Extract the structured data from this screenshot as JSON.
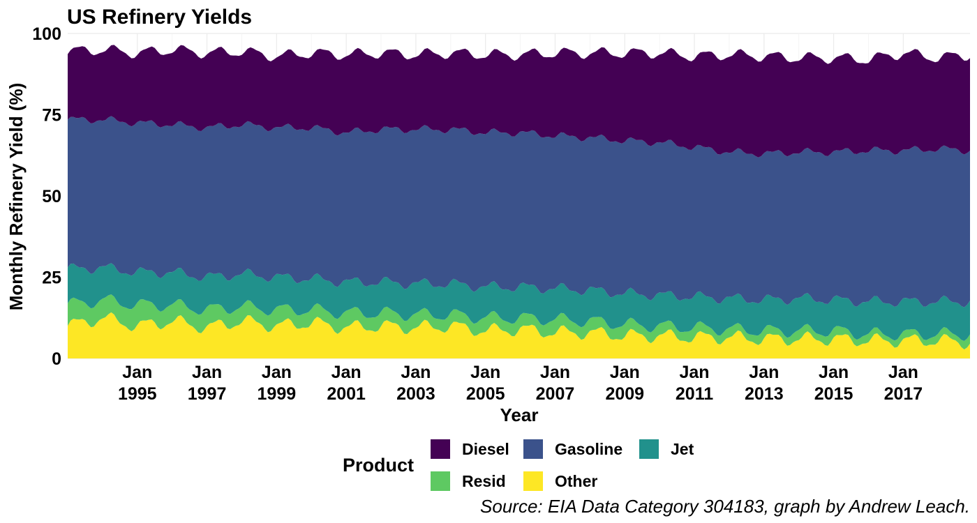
{
  "chart_data": {
    "type": "area",
    "stacked": true,
    "title": "US Refinery Yields",
    "xlabel": "Year",
    "ylabel": "Monthly Refinery Yield (%)",
    "caption": "Source: EIA Data Category 304183, graph by Andrew Leach.",
    "ylim": [
      0,
      100
    ],
    "yticks": [
      0,
      25,
      50,
      75,
      100
    ],
    "xlim": [
      "1993-01",
      "2018-12"
    ],
    "xticks": [
      {
        "date": "1995-01",
        "line1": "Jan",
        "line2": "1995"
      },
      {
        "date": "1997-01",
        "line1": "Jan",
        "line2": "1997"
      },
      {
        "date": "1999-01",
        "line1": "Jan",
        "line2": "1999"
      },
      {
        "date": "2001-01",
        "line1": "Jan",
        "line2": "2001"
      },
      {
        "date": "2003-01",
        "line1": "Jan",
        "line2": "2003"
      },
      {
        "date": "2005-01",
        "line1": "Jan",
        "line2": "2005"
      },
      {
        "date": "2007-01",
        "line1": "Jan",
        "line2": "2007"
      },
      {
        "date": "2009-01",
        "line1": "Jan",
        "line2": "2009"
      },
      {
        "date": "2011-01",
        "line1": "Jan",
        "line2": "2011"
      },
      {
        "date": "2013-01",
        "line1": "Jan",
        "line2": "2013"
      },
      {
        "date": "2015-01",
        "line1": "Jan",
        "line2": "2015"
      },
      {
        "date": "2017-01",
        "line1": "Jan",
        "line2": "2017"
      }
    ],
    "grid": true,
    "legend": {
      "title": "Product",
      "position": "bottom",
      "rows": [
        [
          "Diesel",
          "Gasoline",
          "Jet"
        ],
        [
          "Resid",
          "Other"
        ]
      ]
    },
    "x": [
      "1993-01",
      "1994-01",
      "1995-01",
      "1996-01",
      "1997-01",
      "1998-01",
      "1999-01",
      "2000-01",
      "2001-01",
      "2002-01",
      "2003-01",
      "2004-01",
      "2005-01",
      "2006-01",
      "2007-01",
      "2008-01",
      "2009-01",
      "2010-01",
      "2011-01",
      "2012-01",
      "2013-01",
      "2014-01",
      "2015-01",
      "2016-01",
      "2017-01",
      "2018-01",
      "2018-12"
    ],
    "series": [
      {
        "name": "Other",
        "color": "#FDE725",
        "values": [
          10,
          12.5,
          10,
          11.5,
          9.5,
          11.5,
          10,
          11,
          9.5,
          10,
          9.5,
          10,
          8.5,
          9,
          8,
          8,
          7,
          7,
          6.5,
          6.5,
          6,
          6,
          6,
          5.5,
          5.5,
          5.5,
          5
        ]
      },
      {
        "name": "Resid",
        "color": "#5EC962",
        "values": [
          6.5,
          5.5,
          6.5,
          5,
          5.5,
          4.5,
          5,
          4,
          4.5,
          4,
          4,
          3.5,
          4,
          3.5,
          4,
          3.5,
          3.5,
          3,
          3,
          2.5,
          2.5,
          2.5,
          2.5,
          2,
          2,
          2,
          2.5
        ]
      },
      {
        "name": "Jet",
        "color": "#21918C",
        "values": [
          11,
          10,
          10,
          10,
          10,
          10,
          10,
          9.5,
          9.5,
          9.5,
          9.5,
          9.5,
          9.5,
          9.5,
          9.5,
          9.5,
          9.5,
          9.5,
          9.5,
          9.5,
          9.5,
          10,
          9.5,
          10,
          10,
          10,
          10
        ]
      },
      {
        "name": "Gasoline",
        "color": "#3B528B",
        "values": [
          46,
          45.5,
          46,
          45.5,
          46,
          46,
          46,
          46.5,
          46,
          47,
          47.5,
          47.5,
          47.5,
          47.5,
          47,
          47,
          47,
          47,
          46,
          45,
          45,
          45,
          45.5,
          46.5,
          46.5,
          47,
          46.5
        ]
      },
      {
        "name": "Diesel",
        "color": "#440154",
        "values": [
          21,
          21.5,
          21.5,
          23,
          23,
          22.5,
          22,
          23,
          24,
          23.5,
          23,
          23.5,
          24,
          24,
          25.5,
          26,
          27,
          27.5,
          28,
          30,
          30,
          29,
          29,
          28,
          30,
          28,
          29.5
        ]
      }
    ]
  }
}
